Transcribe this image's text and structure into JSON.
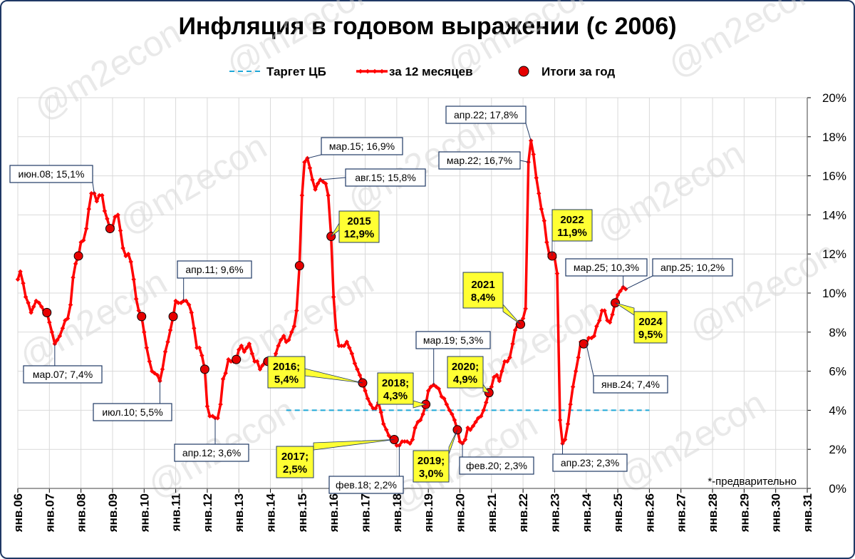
{
  "chart_data": {
    "type": "line",
    "title": "Инфляция в годовом выражении (с 2006)",
    "footnote": "*-предварительно",
    "watermark": "@m2econ",
    "legend": [
      {
        "label": "Таргет ЦБ",
        "style": "dashed",
        "color": "#1fa8d8"
      },
      {
        "label": "за 12 месяцев",
        "style": "line-markers",
        "color": "#ff0000"
      },
      {
        "label": "Итоги за год",
        "style": "circle",
        "color": "#ee0000"
      }
    ],
    "x_ticks": [
      "янв.06",
      "янв.07",
      "янв.08",
      "янв.09",
      "янв.10",
      "янв.11",
      "янв.12",
      "янв.13",
      "янв.14",
      "янв.15",
      "янв.16",
      "янв.17",
      "янв.18",
      "янв.19",
      "янв.20",
      "янв.21",
      "янв.22",
      "янв.23",
      "янв.24",
      "янв.25",
      "янв.26",
      "янв.27",
      "янв.28",
      "янв.29",
      "янв.30",
      "янв.31"
    ],
    "xlim": [
      2006.0,
      2031.0
    ],
    "ylim": [
      0,
      20
    ],
    "y_ticks": [
      "0%",
      "2%",
      "4%",
      "6%",
      "8%",
      "10%",
      "12%",
      "14%",
      "16%",
      "18%",
      "20%"
    ],
    "y_axis_position": "right",
    "target": {
      "value": 4.0,
      "x_start": 2014.5,
      "x_end": 2026.0
    },
    "series_12m": {
      "name": "за 12 месяцев",
      "points": [
        [
          2006.0,
          10.7
        ],
        [
          2006.08,
          11.1
        ],
        [
          2006.17,
          10.5
        ],
        [
          2006.25,
          9.8
        ],
        [
          2006.33,
          9.5
        ],
        [
          2006.42,
          9.0
        ],
        [
          2006.5,
          9.3
        ],
        [
          2006.58,
          9.6
        ],
        [
          2006.67,
          9.5
        ],
        [
          2006.75,
          9.3
        ],
        [
          2006.83,
          9.1
        ],
        [
          2006.92,
          9.0
        ],
        [
          2007.0,
          8.5
        ],
        [
          2007.08,
          8.0
        ],
        [
          2007.17,
          7.4
        ],
        [
          2007.25,
          7.6
        ],
        [
          2007.33,
          7.8
        ],
        [
          2007.42,
          8.2
        ],
        [
          2007.5,
          8.6
        ],
        [
          2007.58,
          8.7
        ],
        [
          2007.67,
          9.4
        ],
        [
          2007.75,
          10.8
        ],
        [
          2007.83,
          11.5
        ],
        [
          2007.92,
          11.9
        ],
        [
          2008.0,
          12.6
        ],
        [
          2008.08,
          12.7
        ],
        [
          2008.17,
          13.3
        ],
        [
          2008.25,
          14.3
        ],
        [
          2008.33,
          15.1
        ],
        [
          2008.42,
          15.1
        ],
        [
          2008.5,
          14.7
        ],
        [
          2008.58,
          15.0
        ],
        [
          2008.67,
          15.0
        ],
        [
          2008.75,
          14.2
        ],
        [
          2008.83,
          13.8
        ],
        [
          2008.92,
          13.3
        ],
        [
          2009.0,
          13.4
        ],
        [
          2009.08,
          13.9
        ],
        [
          2009.17,
          14.0
        ],
        [
          2009.25,
          13.2
        ],
        [
          2009.33,
          12.3
        ],
        [
          2009.42,
          11.9
        ],
        [
          2009.5,
          12.0
        ],
        [
          2009.58,
          11.6
        ],
        [
          2009.67,
          10.7
        ],
        [
          2009.75,
          9.7
        ],
        [
          2009.83,
          9.1
        ],
        [
          2009.92,
          8.8
        ],
        [
          2010.0,
          8.0
        ],
        [
          2010.08,
          7.2
        ],
        [
          2010.17,
          6.5
        ],
        [
          2010.25,
          6.0
        ],
        [
          2010.33,
          5.9
        ],
        [
          2010.42,
          5.8
        ],
        [
          2010.5,
          5.5
        ],
        [
          2010.58,
          6.1
        ],
        [
          2010.67,
          7.0
        ],
        [
          2010.75,
          7.5
        ],
        [
          2010.83,
          8.1
        ],
        [
          2010.92,
          8.8
        ],
        [
          2011.0,
          9.6
        ],
        [
          2011.08,
          9.5
        ],
        [
          2011.17,
          9.5
        ],
        [
          2011.25,
          9.6
        ],
        [
          2011.33,
          9.6
        ],
        [
          2011.42,
          9.4
        ],
        [
          2011.5,
          9.0
        ],
        [
          2011.58,
          8.2
        ],
        [
          2011.67,
          7.2
        ],
        [
          2011.75,
          7.2
        ],
        [
          2011.83,
          6.8
        ],
        [
          2011.92,
          6.1
        ],
        [
          2012.0,
          4.2
        ],
        [
          2012.08,
          3.7
        ],
        [
          2012.17,
          3.7
        ],
        [
          2012.25,
          3.6
        ],
        [
          2012.33,
          3.6
        ],
        [
          2012.42,
          4.3
        ],
        [
          2012.5,
          5.6
        ],
        [
          2012.58,
          5.9
        ],
        [
          2012.67,
          6.6
        ],
        [
          2012.75,
          6.5
        ],
        [
          2012.83,
          6.5
        ],
        [
          2012.92,
          6.6
        ],
        [
          2013.0,
          7.1
        ],
        [
          2013.08,
          7.3
        ],
        [
          2013.17,
          7.0
        ],
        [
          2013.25,
          7.2
        ],
        [
          2013.33,
          7.4
        ],
        [
          2013.42,
          6.9
        ],
        [
          2013.5,
          6.5
        ],
        [
          2013.58,
          6.5
        ],
        [
          2013.67,
          6.1
        ],
        [
          2013.75,
          6.3
        ],
        [
          2013.83,
          6.5
        ],
        [
          2013.92,
          6.5
        ],
        [
          2014.0,
          6.1
        ],
        [
          2014.08,
          6.2
        ],
        [
          2014.17,
          6.9
        ],
        [
          2014.25,
          7.3
        ],
        [
          2014.33,
          7.6
        ],
        [
          2014.42,
          7.8
        ],
        [
          2014.5,
          7.5
        ],
        [
          2014.58,
          7.6
        ],
        [
          2014.67,
          8.0
        ],
        [
          2014.75,
          8.3
        ],
        [
          2014.83,
          9.1
        ],
        [
          2014.92,
          11.4
        ],
        [
          2015.0,
          15.0
        ],
        [
          2015.08,
          16.7
        ],
        [
          2015.17,
          16.9
        ],
        [
          2015.25,
          16.4
        ],
        [
          2015.33,
          15.8
        ],
        [
          2015.42,
          15.3
        ],
        [
          2015.5,
          15.6
        ],
        [
          2015.58,
          15.8
        ],
        [
          2015.67,
          15.7
        ],
        [
          2015.75,
          15.6
        ],
        [
          2015.83,
          15.0
        ],
        [
          2015.92,
          12.9
        ],
        [
          2016.0,
          9.8
        ],
        [
          2016.08,
          8.1
        ],
        [
          2016.17,
          7.3
        ],
        [
          2016.25,
          7.3
        ],
        [
          2016.33,
          7.3
        ],
        [
          2016.42,
          7.5
        ],
        [
          2016.5,
          7.2
        ],
        [
          2016.58,
          6.9
        ],
        [
          2016.67,
          6.4
        ],
        [
          2016.75,
          6.1
        ],
        [
          2016.83,
          5.8
        ],
        [
          2016.92,
          5.4
        ],
        [
          2017.0,
          5.0
        ],
        [
          2017.08,
          4.6
        ],
        [
          2017.17,
          4.3
        ],
        [
          2017.25,
          4.1
        ],
        [
          2017.33,
          4.1
        ],
        [
          2017.42,
          4.4
        ],
        [
          2017.5,
          3.9
        ],
        [
          2017.58,
          3.3
        ],
        [
          2017.67,
          3.0
        ],
        [
          2017.75,
          2.7
        ],
        [
          2017.83,
          2.5
        ],
        [
          2017.92,
          2.5
        ],
        [
          2018.0,
          2.2
        ],
        [
          2018.08,
          2.2
        ],
        [
          2018.17,
          2.4
        ],
        [
          2018.25,
          2.4
        ],
        [
          2018.33,
          2.4
        ],
        [
          2018.42,
          2.3
        ],
        [
          2018.5,
          2.5
        ],
        [
          2018.58,
          3.1
        ],
        [
          2018.67,
          3.4
        ],
        [
          2018.75,
          3.5
        ],
        [
          2018.83,
          3.8
        ],
        [
          2018.92,
          4.3
        ],
        [
          2019.0,
          5.0
        ],
        [
          2019.08,
          5.2
        ],
        [
          2019.17,
          5.3
        ],
        [
          2019.25,
          5.2
        ],
        [
          2019.33,
          5.1
        ],
        [
          2019.42,
          4.7
        ],
        [
          2019.5,
          4.6
        ],
        [
          2019.58,
          4.3
        ],
        [
          2019.67,
          4.0
        ],
        [
          2019.75,
          3.8
        ],
        [
          2019.83,
          3.5
        ],
        [
          2019.92,
          3.0
        ],
        [
          2020.0,
          2.4
        ],
        [
          2020.08,
          2.3
        ],
        [
          2020.17,
          2.5
        ],
        [
          2020.25,
          3.1
        ],
        [
          2020.33,
          3.0
        ],
        [
          2020.42,
          3.2
        ],
        [
          2020.5,
          3.4
        ],
        [
          2020.58,
          3.6
        ],
        [
          2020.67,
          3.7
        ],
        [
          2020.75,
          4.0
        ],
        [
          2020.83,
          4.4
        ],
        [
          2020.92,
          4.9
        ],
        [
          2021.0,
          5.2
        ],
        [
          2021.08,
          5.7
        ],
        [
          2021.17,
          5.8
        ],
        [
          2021.25,
          5.5
        ],
        [
          2021.33,
          6.0
        ],
        [
          2021.42,
          6.5
        ],
        [
          2021.5,
          6.5
        ],
        [
          2021.58,
          6.7
        ],
        [
          2021.67,
          7.4
        ],
        [
          2021.75,
          8.1
        ],
        [
          2021.83,
          8.4
        ],
        [
          2021.92,
          8.4
        ],
        [
          2022.0,
          8.7
        ],
        [
          2022.08,
          9.2
        ],
        [
          2022.17,
          16.7
        ],
        [
          2022.25,
          17.8
        ],
        [
          2022.33,
          17.1
        ],
        [
          2022.42,
          15.9
        ],
        [
          2022.5,
          15.1
        ],
        [
          2022.58,
          14.3
        ],
        [
          2022.67,
          13.7
        ],
        [
          2022.75,
          12.6
        ],
        [
          2022.83,
          12.0
        ],
        [
          2022.92,
          11.9
        ],
        [
          2023.0,
          11.8
        ],
        [
          2023.08,
          11.0
        ],
        [
          2023.17,
          3.5
        ],
        [
          2023.25,
          2.3
        ],
        [
          2023.33,
          2.5
        ],
        [
          2023.42,
          3.3
        ],
        [
          2023.5,
          4.3
        ],
        [
          2023.58,
          5.2
        ],
        [
          2023.67,
          6.0
        ],
        [
          2023.75,
          6.7
        ],
        [
          2023.83,
          7.5
        ],
        [
          2023.92,
          7.4
        ],
        [
          2024.0,
          7.4
        ],
        [
          2024.08,
          7.7
        ],
        [
          2024.17,
          7.7
        ],
        [
          2024.25,
          7.8
        ],
        [
          2024.33,
          8.3
        ],
        [
          2024.42,
          8.6
        ],
        [
          2024.5,
          9.1
        ],
        [
          2024.58,
          9.1
        ],
        [
          2024.67,
          8.6
        ],
        [
          2024.75,
          8.5
        ],
        [
          2024.83,
          8.9
        ],
        [
          2024.92,
          9.5
        ],
        [
          2025.0,
          9.9
        ],
        [
          2025.08,
          10.1
        ],
        [
          2025.17,
          10.3
        ],
        [
          2025.25,
          10.2
        ]
      ]
    },
    "annual_points": [
      [
        2006.92,
        9.0
      ],
      [
        2007.92,
        11.9
      ],
      [
        2008.92,
        13.3
      ],
      [
        2009.92,
        8.8
      ],
      [
        2010.92,
        8.8
      ],
      [
        2011.92,
        6.1
      ],
      [
        2012.92,
        6.6
      ],
      [
        2013.92,
        6.5
      ],
      [
        2014.92,
        11.4
      ],
      [
        2015.92,
        12.9
      ],
      [
        2016.92,
        5.4
      ],
      [
        2017.92,
        2.5
      ],
      [
        2018.92,
        4.3
      ],
      [
        2019.92,
        3.0
      ],
      [
        2020.92,
        4.9
      ],
      [
        2021.92,
        8.4
      ],
      [
        2022.92,
        11.9
      ],
      [
        2023.92,
        7.4
      ],
      [
        2024.92,
        9.5
      ]
    ],
    "annotations": [
      {
        "text": "июн.08; 15,1%",
        "x": 2008.42,
        "y": 15.1,
        "kind": "point"
      },
      {
        "text": "мар.07; 7,4%",
        "x": 2007.17,
        "y": 7.4,
        "kind": "point"
      },
      {
        "text": "июл.10; 5,5%",
        "x": 2010.5,
        "y": 5.5,
        "kind": "point"
      },
      {
        "text": "апр.11; 9,6%",
        "x": 2011.25,
        "y": 9.6,
        "kind": "point"
      },
      {
        "text": "апр.12; 3,6%",
        "x": 2012.25,
        "y": 3.6,
        "kind": "point"
      },
      {
        "text": "мар.15; 16,9%",
        "x": 2015.17,
        "y": 16.9,
        "kind": "point"
      },
      {
        "text": "авг.15; 15,8%",
        "x": 2015.58,
        "y": 15.8,
        "kind": "point"
      },
      {
        "text": "фев.18; 2,2%",
        "x": 2018.08,
        "y": 2.2,
        "kind": "point"
      },
      {
        "text": "мар.19; 5,3%",
        "x": 2019.17,
        "y": 5.3,
        "kind": "point"
      },
      {
        "text": "фев.20; 2,3%",
        "x": 2020.08,
        "y": 2.3,
        "kind": "point"
      },
      {
        "text": "апр.22; 17,8%",
        "x": 2022.25,
        "y": 17.8,
        "kind": "point"
      },
      {
        "text": "мар.22; 16,7%",
        "x": 2022.17,
        "y": 16.7,
        "kind": "point"
      },
      {
        "text": "апр.23; 2,3%",
        "x": 2023.25,
        "y": 2.3,
        "kind": "point"
      },
      {
        "text": "янв.24; 7,4%",
        "x": 2024.0,
        "y": 7.4,
        "kind": "point"
      },
      {
        "text": "мар.25; 10,3%",
        "x": 2025.17,
        "y": 10.3,
        "kind": "point"
      },
      {
        "text": "апр.25; 10,2%",
        "x": 2025.25,
        "y": 10.2,
        "kind": "point"
      },
      {
        "line1": "2015",
        "line2": "12,9%",
        "x": 2015.92,
        "y": 12.9,
        "kind": "year"
      },
      {
        "line1": "2016;",
        "line2": "5,4%",
        "x": 2016.92,
        "y": 5.4,
        "kind": "year"
      },
      {
        "line1": "2017;",
        "line2": "2,5%",
        "x": 2017.92,
        "y": 2.5,
        "kind": "year"
      },
      {
        "line1": "2018;",
        "line2": "4,3%",
        "x": 2018.92,
        "y": 4.3,
        "kind": "year"
      },
      {
        "line1": "2019;",
        "line2": "3,0%",
        "x": 2019.92,
        "y": 3.0,
        "kind": "year"
      },
      {
        "line1": "2020;",
        "line2": "4,9%",
        "x": 2020.92,
        "y": 4.9,
        "kind": "year"
      },
      {
        "line1": "2021",
        "line2": "8,4%",
        "x": 2021.92,
        "y": 8.4,
        "kind": "year"
      },
      {
        "line1": "2022",
        "line2": "11,9%",
        "x": 2022.92,
        "y": 11.9,
        "kind": "year"
      },
      {
        "line1": "2024",
        "line2": "9,5%",
        "x": 2024.92,
        "y": 9.5,
        "kind": "year"
      }
    ]
  }
}
